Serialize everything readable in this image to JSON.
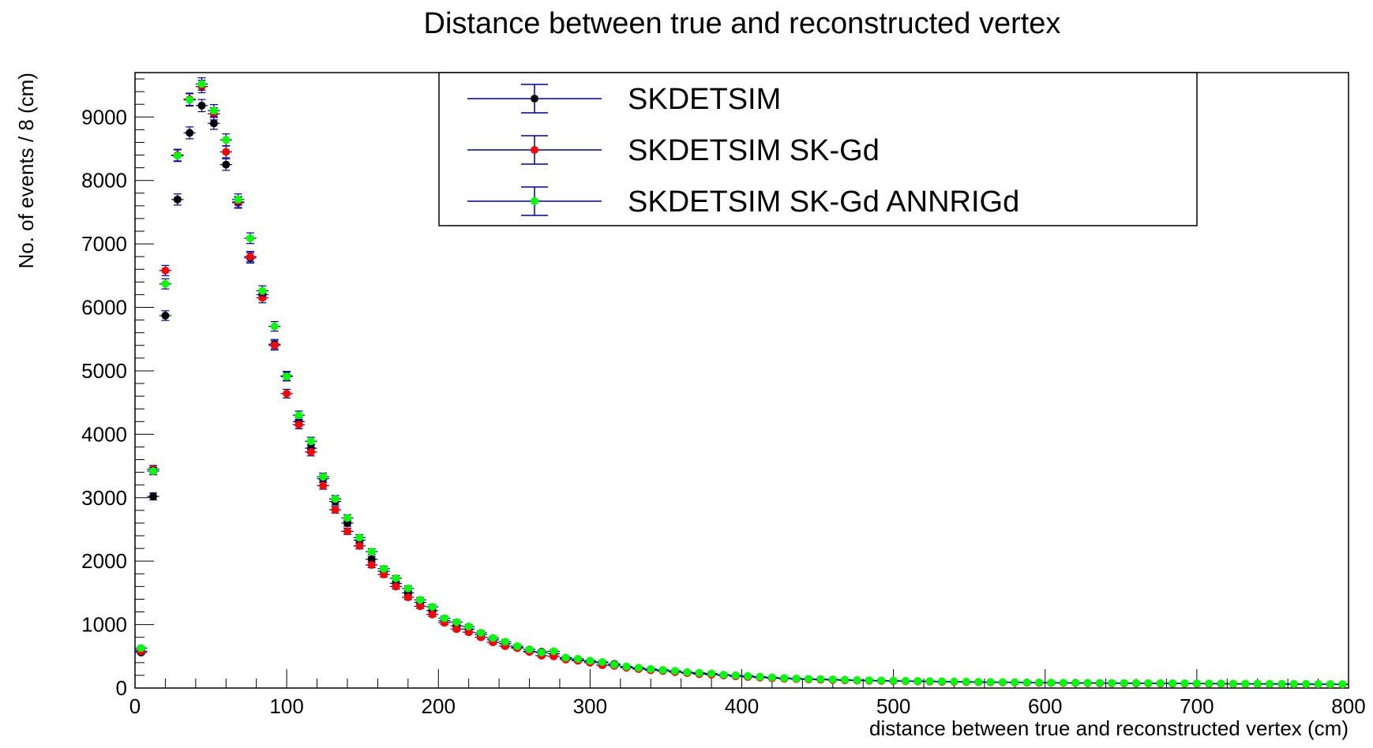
{
  "chart_data": {
    "type": "scatter",
    "title": "Distance between true and reconstructed vertex",
    "xlabel": "distance between true and reconstructed vertex (cm)",
    "ylabel": "No. of events / 8 (cm)",
    "xlim": [
      0,
      800
    ],
    "ylim": [
      0,
      9700
    ],
    "xticks": [
      0,
      100,
      200,
      300,
      400,
      500,
      600,
      700,
      800
    ],
    "yticks": [
      0,
      1000,
      2000,
      3000,
      4000,
      5000,
      6000,
      7000,
      8000,
      9000
    ],
    "grid": false,
    "legend_position": "top-center",
    "bin_width": 8,
    "series": [
      {
        "name": "SKDETSIM",
        "color": "#000000",
        "x": [
          4,
          12,
          20,
          28,
          36,
          44,
          52,
          60,
          68,
          76,
          84,
          92,
          100,
          108,
          116,
          124,
          132,
          140,
          148,
          156,
          164,
          172,
          180,
          188,
          196,
          204,
          212,
          220,
          228,
          236,
          244,
          252,
          260,
          268,
          276,
          284,
          292,
          300,
          308,
          316,
          324,
          332,
          340,
          348,
          356,
          364,
          372,
          380,
          388,
          396,
          404,
          412,
          420,
          428,
          436,
          444,
          452,
          460,
          468,
          476,
          484,
          492,
          500,
          508,
          516,
          524,
          532,
          540,
          548,
          556,
          564,
          572,
          580,
          588,
          596,
          604,
          612,
          620,
          628,
          636,
          644,
          652,
          660,
          668,
          676,
          684,
          692,
          700,
          708,
          716,
          724,
          732,
          740,
          748,
          756,
          764,
          772,
          780,
          788,
          796
        ],
        "y": [
          560,
          3020,
          5870,
          7700,
          8750,
          9180,
          8900,
          8250,
          7650,
          6780,
          6200,
          5420,
          4920,
          4200,
          3780,
          3300,
          2940,
          2600,
          2330,
          2030,
          1840,
          1650,
          1500,
          1350,
          1220,
          1060,
          980,
          930,
          840,
          760,
          700,
          640,
          580,
          570,
          540,
          470,
          440,
          420,
          400,
          380,
          330,
          310,
          290,
          280,
          260,
          240,
          230,
          220,
          200,
          190,
          180,
          170,
          160,
          150,
          145,
          140,
          135,
          130,
          125,
          120,
          118,
          115,
          112,
          110,
          108,
          105,
          100,
          98,
          96,
          94,
          92,
          90,
          88,
          86,
          84,
          82,
          80,
          79,
          78,
          77,
          76,
          75,
          74,
          73,
          72,
          71,
          70,
          69,
          68,
          67,
          66,
          65,
          64,
          63,
          62,
          61,
          60,
          59,
          58,
          57
        ]
      },
      {
        "name": "SKDETSIM SK-Gd",
        "color": "#ff0000",
        "x": [
          4,
          12,
          20,
          28,
          36,
          44,
          52,
          60,
          68,
          76,
          84,
          92,
          100,
          108,
          116,
          124,
          132,
          140,
          148,
          156,
          164,
          172,
          180,
          188,
          196,
          204,
          212,
          220,
          228,
          236,
          244,
          252,
          260,
          268,
          276,
          284,
          292,
          300,
          308,
          316,
          324,
          332,
          340,
          348,
          356,
          364,
          372,
          380,
          388,
          396,
          404,
          412,
          420,
          428,
          436,
          444,
          452,
          460,
          468,
          476,
          484,
          492,
          500,
          508,
          516,
          524,
          532,
          540,
          548,
          556,
          564,
          572,
          580,
          588,
          596,
          604,
          612,
          620,
          628,
          636,
          644,
          652,
          660,
          668,
          676,
          684,
          692,
          700,
          708,
          716,
          724,
          732,
          740,
          748,
          756,
          764,
          772,
          780,
          788,
          796
        ],
        "y": [
          580,
          3450,
          6580,
          8400,
          9280,
          9480,
          9050,
          8450,
          7660,
          6800,
          6150,
          5400,
          4640,
          4150,
          3720,
          3190,
          2810,
          2470,
          2240,
          1940,
          1790,
          1600,
          1430,
          1290,
          1160,
          1030,
          930,
          880,
          800,
          720,
          660,
          630,
          570,
          510,
          500,
          450,
          430,
          400,
          360,
          350,
          320,
          300,
          280,
          270,
          250,
          235,
          220,
          210,
          200,
          185,
          175,
          165,
          155,
          148,
          142,
          136,
          130,
          126,
          122,
          118,
          115,
          112,
          110,
          107,
          104,
          102,
          99,
          97,
          95,
          93,
          91,
          89,
          87,
          85,
          83,
          81,
          80,
          79,
          78,
          77,
          76,
          75,
          74,
          73,
          72,
          71,
          70,
          69,
          68,
          67,
          66,
          65,
          64,
          63,
          62,
          61,
          60,
          59,
          58,
          57
        ]
      },
      {
        "name": "SKDETSIM SK-Gd ANNRIGd",
        "color": "#00ff00",
        "x": [
          4,
          12,
          20,
          28,
          36,
          44,
          52,
          60,
          68,
          76,
          84,
          92,
          100,
          108,
          116,
          124,
          132,
          140,
          148,
          156,
          164,
          172,
          180,
          188,
          196,
          204,
          212,
          220,
          228,
          236,
          244,
          252,
          260,
          268,
          276,
          284,
          292,
          300,
          308,
          316,
          324,
          332,
          340,
          348,
          356,
          364,
          372,
          380,
          388,
          396,
          404,
          412,
          420,
          428,
          436,
          444,
          452,
          460,
          468,
          476,
          484,
          492,
          500,
          508,
          516,
          524,
          532,
          540,
          548,
          556,
          564,
          572,
          580,
          588,
          596,
          604,
          612,
          620,
          628,
          636,
          644,
          652,
          660,
          668,
          676,
          684,
          692,
          700,
          708,
          716,
          724,
          732,
          740,
          748,
          756,
          764,
          772,
          780,
          788,
          796
        ],
        "y": [
          630,
          3420,
          6370,
          8390,
          9270,
          9520,
          9100,
          8640,
          7700,
          7090,
          6260,
          5700,
          4910,
          4300,
          3890,
          3330,
          2980,
          2680,
          2370,
          2150,
          1880,
          1730,
          1570,
          1390,
          1280,
          1100,
          1040,
          970,
          870,
          790,
          730,
          660,
          610,
          560,
          580,
          480,
          460,
          430,
          410,
          370,
          340,
          320,
          300,
          285,
          270,
          250,
          240,
          230,
          210,
          200,
          190,
          178,
          168,
          158,
          150,
          145,
          140,
          135,
          130,
          125,
          122,
          118,
          115,
          112,
          110,
          108,
          105,
          102,
          100,
          97,
          95,
          93,
          91,
          89,
          87,
          85,
          84,
          83,
          82,
          81,
          80,
          79,
          78,
          77,
          76,
          75,
          74,
          73,
          72,
          71,
          70,
          69,
          68,
          67,
          66,
          65,
          64,
          63,
          62,
          61
        ]
      }
    ]
  }
}
